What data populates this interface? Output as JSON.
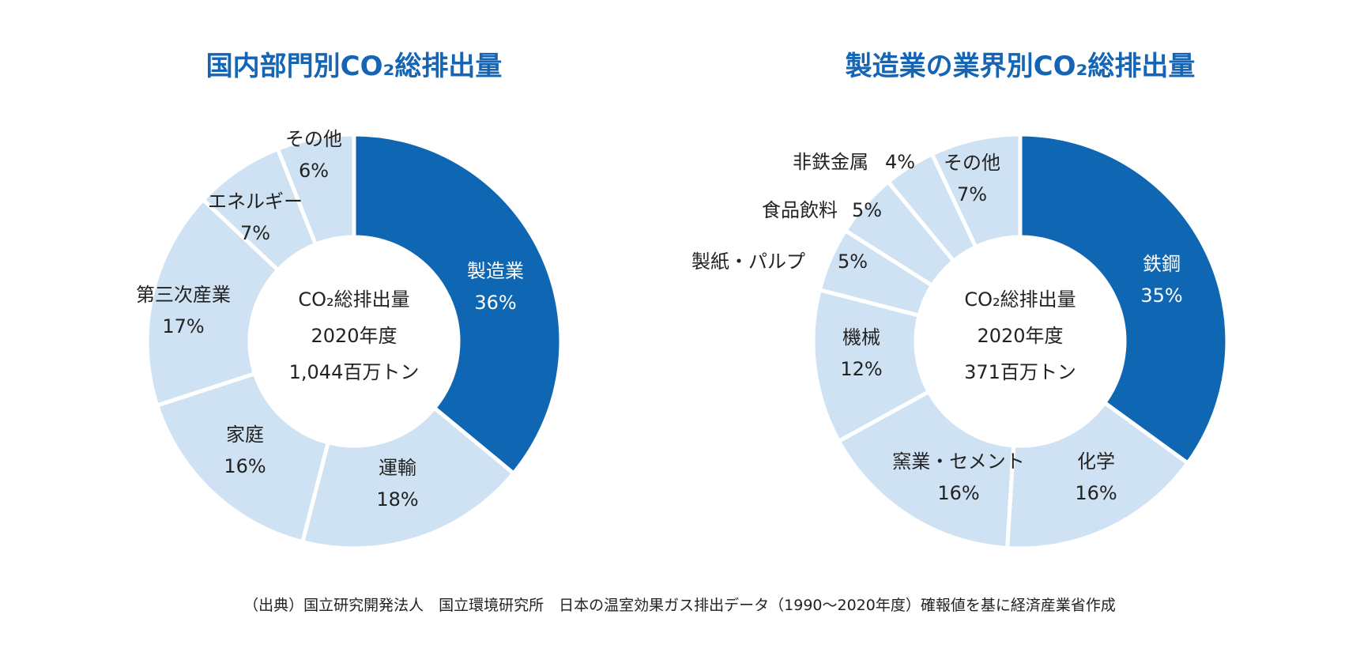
{
  "colors": {
    "highlight": "#0f66b2",
    "base": "#cfe2f3",
    "title": "#1565b4",
    "border": "#ffffff"
  },
  "chart_data": [
    {
      "type": "pie",
      "title": "国内部門別CO₂総排出量",
      "center_text": [
        "CO₂総排出量",
        "2020年度",
        "1,044百万トン"
      ],
      "slices": [
        {
          "label": "製造業",
          "value": 36,
          "value_label": "36%",
          "highlight": true
        },
        {
          "label": "運輸",
          "value": 18,
          "value_label": "18%",
          "highlight": false
        },
        {
          "label": "家庭",
          "value": 16,
          "value_label": "16%",
          "highlight": false
        },
        {
          "label": "第三次産業",
          "value": 17,
          "value_label": "17%",
          "highlight": false
        },
        {
          "label": "エネルギー",
          "value": 7,
          "value_label": "7%",
          "highlight": false
        },
        {
          "label": "その他",
          "value": 6,
          "value_label": "6%",
          "highlight": false
        }
      ]
    },
    {
      "type": "pie",
      "title": "製造業の業界別CO₂総排出量",
      "center_text": [
        "CO₂総排出量",
        "2020年度",
        "371百万トン"
      ],
      "slices": [
        {
          "label": "鉄鋼",
          "value": 35,
          "value_label": "35%",
          "highlight": true
        },
        {
          "label": "化学",
          "value": 16,
          "value_label": "16%",
          "highlight": false
        },
        {
          "label": "窯業・セメント",
          "value": 16,
          "value_label": "16%",
          "highlight": false
        },
        {
          "label": "機械",
          "value": 12,
          "value_label": "12%",
          "highlight": false
        },
        {
          "label": "製紙・パルプ",
          "value": 5,
          "value_label": "5%",
          "highlight": false
        },
        {
          "label": "食品飲料",
          "value": 5,
          "value_label": "5%",
          "highlight": false
        },
        {
          "label": "非鉄金属",
          "value": 4,
          "value_label": "4%",
          "highlight": false
        },
        {
          "label": "その他",
          "value": 7,
          "value_label": "7%",
          "highlight": false
        }
      ]
    }
  ],
  "source_note": "（出典）国立研究開発法人　国立環境研究所　日本の温室効果ガス排出データ（1990〜2020年度）確報値を基に経済産業省作成"
}
